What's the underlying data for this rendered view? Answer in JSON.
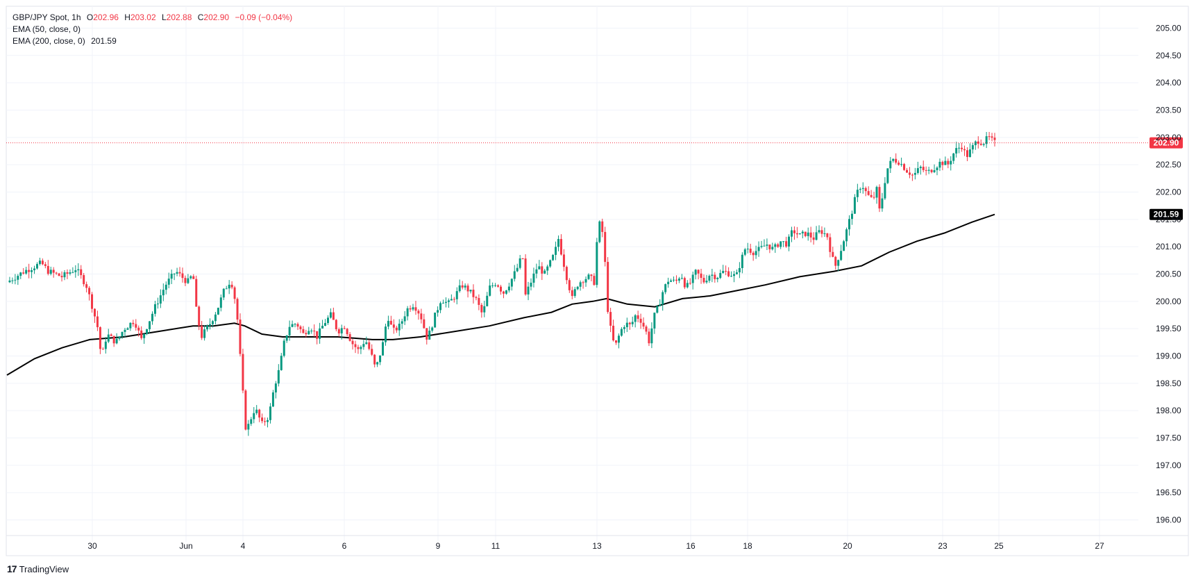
{
  "legend": {
    "symbol": "GBP/JPY Spot",
    "interval": "1h",
    "o_label": "O",
    "o_value": "202.96",
    "h_label": "H",
    "h_value": "203.02",
    "l_label": "L",
    "l_value": "202.88",
    "c_label": "C",
    "c_value": "202.90",
    "change": "−0.09 (−0.04%)",
    "ema50_label": "EMA (50, close, 0)",
    "ema200_label": "EMA (200, close, 0)",
    "ema200_value": "201.59"
  },
  "branding": {
    "logo": "17",
    "name": "TradingView"
  },
  "colors": {
    "up": "#089981",
    "down": "#f23645",
    "ema200": "#000000",
    "price_line": "#f23645",
    "grid": "#f0f3fa"
  },
  "chart_data": {
    "type": "candlestick",
    "title": "GBP/JPY Spot",
    "interval": "1h",
    "ylim": [
      195.6,
      205.4
    ],
    "y_ticks": [
      "205.00",
      "204.50",
      "204.00",
      "203.50",
      "203.00",
      "202.50",
      "202.00",
      "201.50",
      "201.00",
      "200.50",
      "200.00",
      "199.50",
      "199.00",
      "198.50",
      "198.00",
      "197.50",
      "197.00",
      "196.50",
      "196.00"
    ],
    "x_ticks": [
      "30",
      "Jun",
      "4",
      "6",
      "9",
      "11",
      "13",
      "16",
      "18",
      "20",
      "23",
      "25",
      "27"
    ],
    "last_price": 202.9,
    "last_price_label": "202.90",
    "ema200_last": 201.59,
    "ema200_last_label": "201.59",
    "price_path": [
      [
        0,
        200.35
      ],
      [
        25,
        200.55
      ],
      [
        50,
        200.7
      ],
      [
        60,
        200.55
      ],
      [
        80,
        200.45
      ],
      [
        100,
        200.6
      ],
      [
        115,
        200.3
      ],
      [
        125,
        199.85
      ],
      [
        132,
        199.5
      ],
      [
        137,
        198.95
      ],
      [
        145,
        199.4
      ],
      [
        158,
        199.25
      ],
      [
        170,
        199.5
      ],
      [
        185,
        199.65
      ],
      [
        195,
        199.3
      ],
      [
        205,
        199.6
      ],
      [
        215,
        199.9
      ],
      [
        230,
        200.3
      ],
      [
        245,
        200.55
      ],
      [
        262,
        200.35
      ],
      [
        270,
        200.5
      ],
      [
        275,
        199.8
      ],
      [
        282,
        199.35
      ],
      [
        295,
        199.6
      ],
      [
        305,
        199.85
      ],
      [
        315,
        200.2
      ],
      [
        325,
        200.4
      ],
      [
        333,
        199.9
      ],
      [
        338,
        199.05
      ],
      [
        343,
        198.2
      ],
      [
        347,
        197.6
      ],
      [
        352,
        197.8
      ],
      [
        360,
        198.05
      ],
      [
        370,
        197.75
      ],
      [
        380,
        197.9
      ],
      [
        388,
        198.45
      ],
      [
        395,
        198.75
      ],
      [
        403,
        199.3
      ],
      [
        410,
        199.55
      ],
      [
        420,
        199.6
      ],
      [
        430,
        199.4
      ],
      [
        440,
        199.55
      ],
      [
        450,
        199.35
      ],
      [
        460,
        199.6
      ],
      [
        470,
        199.75
      ],
      [
        480,
        199.45
      ],
      [
        490,
        199.55
      ],
      [
        500,
        199.25
      ],
      [
        510,
        199.1
      ],
      [
        520,
        199.3
      ],
      [
        528,
        199.05
      ],
      [
        535,
        198.75
      ],
      [
        545,
        199.2
      ],
      [
        552,
        199.75
      ],
      [
        560,
        199.45
      ],
      [
        570,
        199.55
      ],
      [
        580,
        199.85
      ],
      [
        590,
        199.95
      ],
      [
        600,
        199.75
      ],
      [
        610,
        199.3
      ],
      [
        620,
        199.7
      ],
      [
        630,
        200.05
      ],
      [
        640,
        199.95
      ],
      [
        650,
        200.1
      ],
      [
        660,
        200.3
      ],
      [
        670,
        200.2
      ],
      [
        680,
        200.05
      ],
      [
        690,
        199.75
      ],
      [
        700,
        200.25
      ],
      [
        710,
        200.35
      ],
      [
        720,
        200.15
      ],
      [
        730,
        200.35
      ],
      [
        740,
        200.6
      ],
      [
        748,
        200.85
      ],
      [
        752,
        200.1
      ],
      [
        760,
        200.35
      ],
      [
        770,
        200.65
      ],
      [
        780,
        200.5
      ],
      [
        790,
        200.75
      ],
      [
        795,
        200.9
      ],
      [
        800,
        201.15
      ],
      [
        805,
        200.85
      ],
      [
        812,
        200.45
      ],
      [
        820,
        200.05
      ],
      [
        827,
        200.3
      ],
      [
        835,
        200.4
      ],
      [
        845,
        200.45
      ],
      [
        852,
        200.35
      ],
      [
        857,
        201.3
      ],
      [
        862,
        201.5
      ],
      [
        867,
        200.85
      ],
      [
        872,
        199.8
      ],
      [
        877,
        199.4
      ],
      [
        882,
        199.15
      ],
      [
        890,
        199.45
      ],
      [
        897,
        199.6
      ],
      [
        905,
        199.55
      ],
      [
        912,
        199.75
      ],
      [
        920,
        199.65
      ],
      [
        927,
        199.45
      ],
      [
        932,
        199.25
      ],
      [
        938,
        199.7
      ],
      [
        945,
        199.9
      ],
      [
        952,
        200.2
      ],
      [
        960,
        200.4
      ],
      [
        970,
        200.35
      ],
      [
        978,
        200.5
      ],
      [
        985,
        200.25
      ],
      [
        992,
        200.35
      ],
      [
        1000,
        200.55
      ],
      [
        1010,
        200.35
      ],
      [
        1020,
        200.5
      ],
      [
        1030,
        200.45
      ],
      [
        1040,
        200.55
      ],
      [
        1050,
        200.5
      ],
      [
        1058,
        200.45
      ],
      [
        1065,
        200.75
      ],
      [
        1072,
        201.0
      ],
      [
        1082,
        200.9
      ],
      [
        1092,
        200.95
      ],
      [
        1102,
        201.05
      ],
      [
        1112,
        200.95
      ],
      [
        1122,
        201.1
      ],
      [
        1132,
        201.05
      ],
      [
        1140,
        201.3
      ],
      [
        1150,
        201.2
      ],
      [
        1160,
        201.25
      ],
      [
        1170,
        201.15
      ],
      [
        1180,
        201.3
      ],
      [
        1190,
        201.2
      ],
      [
        1197,
        200.8
      ],
      [
        1202,
        200.65
      ],
      [
        1210,
        200.95
      ],
      [
        1217,
        201.25
      ],
      [
        1225,
        201.6
      ],
      [
        1232,
        201.95
      ],
      [
        1240,
        202.15
      ],
      [
        1248,
        201.95
      ],
      [
        1256,
        201.85
      ],
      [
        1262,
        202.05
      ],
      [
        1267,
        201.55
      ],
      [
        1271,
        202.05
      ],
      [
        1278,
        202.45
      ],
      [
        1285,
        202.6
      ],
      [
        1295,
        202.55
      ],
      [
        1305,
        202.4
      ],
      [
        1315,
        202.3
      ],
      [
        1325,
        202.45
      ],
      [
        1335,
        202.35
      ],
      [
        1345,
        202.45
      ],
      [
        1355,
        202.55
      ],
      [
        1365,
        202.5
      ],
      [
        1375,
        202.75
      ],
      [
        1385,
        202.85
      ],
      [
        1392,
        202.65
      ],
      [
        1400,
        202.8
      ],
      [
        1408,
        202.95
      ],
      [
        1416,
        202.9
      ],
      [
        1424,
        203.0
      ],
      [
        1433,
        202.9
      ]
    ],
    "ema200_path": [
      [
        0,
        198.65
      ],
      [
        40,
        198.95
      ],
      [
        80,
        199.15
      ],
      [
        120,
        199.3
      ],
      [
        170,
        199.35
      ],
      [
        220,
        199.45
      ],
      [
        270,
        199.55
      ],
      [
        300,
        199.55
      ],
      [
        330,
        199.6
      ],
      [
        345,
        199.55
      ],
      [
        370,
        199.4
      ],
      [
        400,
        199.35
      ],
      [
        440,
        199.35
      ],
      [
        480,
        199.35
      ],
      [
        530,
        199.3
      ],
      [
        560,
        199.3
      ],
      [
        600,
        199.35
      ],
      [
        650,
        199.45
      ],
      [
        700,
        199.55
      ],
      [
        750,
        199.7
      ],
      [
        790,
        199.8
      ],
      [
        820,
        199.95
      ],
      [
        850,
        200.0
      ],
      [
        870,
        200.05
      ],
      [
        900,
        199.95
      ],
      [
        940,
        199.9
      ],
      [
        980,
        200.05
      ],
      [
        1020,
        200.1
      ],
      [
        1060,
        200.2
      ],
      [
        1100,
        200.3
      ],
      [
        1150,
        200.45
      ],
      [
        1200,
        200.55
      ],
      [
        1240,
        200.65
      ],
      [
        1280,
        200.9
      ],
      [
        1320,
        201.1
      ],
      [
        1360,
        201.25
      ],
      [
        1400,
        201.45
      ],
      [
        1433,
        201.59
      ]
    ]
  }
}
